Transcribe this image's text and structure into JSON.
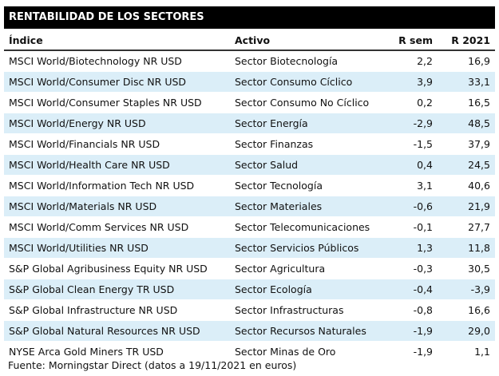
{
  "header": {
    "title": "RENTABILIDAD DE LOS SECTORES"
  },
  "table": {
    "columns": [
      "Índice",
      "Activo",
      "R sem",
      "R 2021"
    ],
    "rows": [
      [
        "MSCI World/Biotechnology NR USD",
        "Sector Biotecnología",
        "2,2",
        "16,9"
      ],
      [
        "MSCI World/Consumer Disc NR USD",
        "Sector Consumo Cíclico",
        "3,9",
        "33,1"
      ],
      [
        "MSCI World/Consumer Staples NR USD",
        "Sector Consumo No Cíclico",
        "0,2",
        "16,5"
      ],
      [
        "MSCI World/Energy NR USD",
        "Sector Energía",
        "-2,9",
        "48,5"
      ],
      [
        "MSCI World/Financials NR USD",
        "Sector Finanzas",
        "-1,5",
        "37,9"
      ],
      [
        "MSCI World/Health Care NR USD",
        "Sector Salud",
        "0,4",
        "24,5"
      ],
      [
        "MSCI World/Information Tech NR USD",
        "Sector Tecnología",
        "3,1",
        "40,6"
      ],
      [
        "MSCI World/Materials NR USD",
        "Sector Materiales",
        "-0,6",
        "21,9"
      ],
      [
        "MSCI World/Comm Services NR USD",
        "Sector Telecomunicaciones",
        "-0,1",
        "27,7"
      ],
      [
        "MSCI World/Utilities NR USD",
        "Sector Servicios Públicos",
        "1,3",
        "11,8"
      ],
      [
        "S&P Global Agribusiness Equity NR USD",
        "Sector Agricultura",
        "-0,3",
        "30,5"
      ],
      [
        "S&P Global Clean Energy TR USD",
        "Sector Ecología",
        "-0,4",
        "-3,9"
      ],
      [
        "S&P Global Infrastructure NR USD",
        "Sector Infrastructuras",
        "-0,8",
        "16,6"
      ],
      [
        "S&P Global Natural Resources NR USD",
        "Sector Recursos Naturales",
        "-1,9",
        "29,0"
      ],
      [
        "NYSE Arca Gold Miners TR USD",
        "Sector Minas de Oro",
        "-1,9",
        "1,1"
      ]
    ]
  },
  "footer": {
    "note": "Fuente: Morningstar Direct (datos a 19/11/2021 en euros)"
  }
}
